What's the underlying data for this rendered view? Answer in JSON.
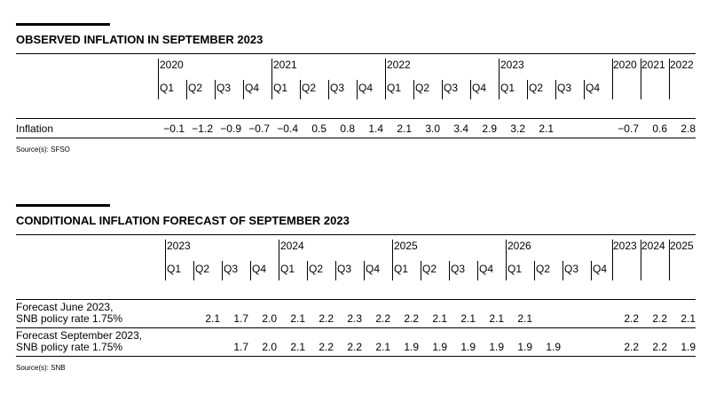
{
  "tables": [
    {
      "title": "OBSERVED INFLATION IN SEPTEMBER 2023",
      "years": [
        "2020",
        "2021",
        "2022",
        "2023"
      ],
      "quarters": [
        "Q1",
        "Q2",
        "Q3",
        "Q4"
      ],
      "annual": [
        "2020",
        "2021",
        "2022"
      ],
      "rows": [
        {
          "label": [
            "Inflation"
          ],
          "values": [
            "−0.1",
            "−1.2",
            "−0.9",
            "−0.7",
            "−0.4",
            "0.5",
            "0.8",
            "1.4",
            "2.1",
            "3.0",
            "3.4",
            "2.9",
            "3.2",
            "2.1",
            null,
            null
          ],
          "annual": [
            "−0.7",
            "0.6",
            "2.8"
          ]
        }
      ],
      "source": "Source(s): SFSO"
    },
    {
      "title": "CONDITIONAL INFLATION FORECAST OF SEPTEMBER 2023",
      "years": [
        "2023",
        "2024",
        "2025",
        "2026"
      ],
      "quarters": [
        "Q1",
        "Q2",
        "Q3",
        "Q4"
      ],
      "annual": [
        "2023",
        "2024",
        "2025"
      ],
      "rows": [
        {
          "label": [
            "Forecast June 2023,",
            "SNB policy rate 1.75%"
          ],
          "values": [
            null,
            "2.1",
            "1.7",
            "2.0",
            "2.1",
            "2.2",
            "2.3",
            "2.2",
            "2.2",
            "2.1",
            "2.1",
            "2.1",
            "2.1",
            null,
            null,
            null
          ],
          "annual": [
            "2.2",
            "2.2",
            "2.1"
          ]
        },
        {
          "label": [
            "Forecast September 2023,",
            "SNB policy rate 1.75%"
          ],
          "values": [
            null,
            null,
            "1.7",
            "2.0",
            "2.1",
            "2.2",
            "2.2",
            "2.1",
            "1.9",
            "1.9",
            "1.9",
            "1.9",
            "1.9",
            "1.9",
            null,
            null
          ],
          "annual": [
            "2.2",
            "2.2",
            "1.9"
          ]
        }
      ],
      "source": "Source(s): SNB"
    }
  ]
}
